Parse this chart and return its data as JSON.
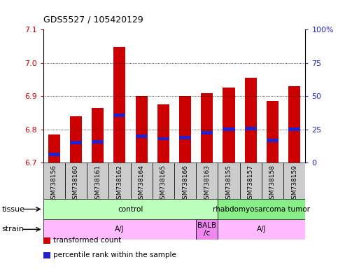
{
  "title": "GDS5527 / 105420129",
  "samples": [
    "GSM738156",
    "GSM738160",
    "GSM738161",
    "GSM738162",
    "GSM738164",
    "GSM738165",
    "GSM738166",
    "GSM738163",
    "GSM738155",
    "GSM738157",
    "GSM738158",
    "GSM738159"
  ],
  "transformed_count": [
    6.785,
    6.84,
    6.865,
    7.048,
    6.9,
    6.875,
    6.9,
    6.91,
    6.925,
    6.955,
    6.885,
    6.93
  ],
  "percentile_rank": [
    6.725,
    6.76,
    6.762,
    6.843,
    6.78,
    6.772,
    6.775,
    6.79,
    6.8,
    6.802,
    6.767,
    6.8
  ],
  "ymin": 6.7,
  "ymax": 7.1,
  "yticks_left": [
    6.7,
    6.8,
    6.9,
    7.0,
    7.1
  ],
  "yticks_right": [
    0,
    25,
    50,
    75,
    100
  ],
  "bar_color": "#cc0000",
  "blue_color": "#2222cc",
  "tissue_groups": [
    {
      "label": "control",
      "start": 0,
      "end": 8,
      "color": "#bbffbb"
    },
    {
      "label": "rhabdomyosarcoma tumor",
      "start": 8,
      "end": 12,
      "color": "#88ee88"
    }
  ],
  "strain_groups": [
    {
      "label": "A/J",
      "start": 0,
      "end": 7,
      "color": "#ffbbff"
    },
    {
      "label": "BALB\n/c",
      "start": 7,
      "end": 8,
      "color": "#ee88ee"
    },
    {
      "label": "A/J",
      "start": 8,
      "end": 12,
      "color": "#ffbbff"
    }
  ],
  "legend_items": [
    {
      "label": "transformed count",
      "color": "#cc0000"
    },
    {
      "label": "percentile rank within the sample",
      "color": "#2222cc"
    }
  ],
  "left_color": "#cc0000",
  "right_color": "#2222cc",
  "grid_color": "#000000",
  "bar_width": 0.55,
  "tick_bg_color": "#cccccc",
  "tissue_label": "tissue",
  "strain_label": "strain",
  "spine_color": "#000000"
}
